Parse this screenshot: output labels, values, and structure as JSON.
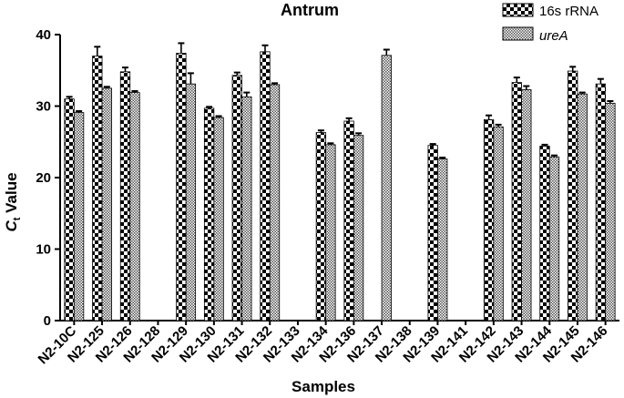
{
  "chart_data": {
    "type": "bar",
    "title": "Antrum",
    "xlabel": "Samples",
    "ylabel_main": "C",
    "ylabel_sub": "t",
    "ylabel_rest": " Value",
    "ylim": [
      0,
      40
    ],
    "yticks": [
      "0",
      "10",
      "20",
      "30",
      "40"
    ],
    "ytick_values": [
      0,
      10,
      20,
      30,
      40
    ],
    "grid": false,
    "legend_position": "top-right",
    "categories": [
      "N2-10C",
      "N2-125",
      "N2-126",
      "N2-128",
      "N2-129",
      "N2-130",
      "N2-131",
      "N2-132",
      "N2-133",
      "N2-134",
      "N2-136",
      "N2-137",
      "N2-138",
      "N2-139",
      "N2-141",
      "N2-142",
      "N2-143",
      "N2-144",
      "N2-145",
      "N2-146"
    ],
    "series": [
      {
        "name": "16s rRNA",
        "pattern": "checker",
        "values": [
          31.0,
          37.0,
          34.8,
          null,
          37.4,
          29.7,
          34.3,
          37.6,
          null,
          26.3,
          27.9,
          null,
          null,
          24.5,
          null,
          28.1,
          33.3,
          24.4,
          34.9,
          33.1
        ],
        "errors": [
          0.3,
          1.3,
          0.6,
          null,
          1.4,
          0.2,
          0.4,
          0.9,
          null,
          0.3,
          0.4,
          null,
          null,
          0.2,
          null,
          0.6,
          0.7,
          0.2,
          0.6,
          0.7
        ]
      },
      {
        "name": "ureA",
        "pattern": "fine",
        "values": [
          29.1,
          32.5,
          31.9,
          null,
          33.1,
          28.4,
          31.3,
          33.0,
          null,
          24.6,
          25.9,
          37.1,
          null,
          22.6,
          null,
          27.1,
          32.3,
          22.9,
          31.7,
          30.4
        ],
        "errors": [
          0.2,
          0.2,
          0.2,
          null,
          1.5,
          0.2,
          0.6,
          0.2,
          null,
          0.2,
          0.3,
          0.8,
          null,
          0.2,
          null,
          0.3,
          0.5,
          0.2,
          0.2,
          0.3
        ]
      }
    ]
  }
}
